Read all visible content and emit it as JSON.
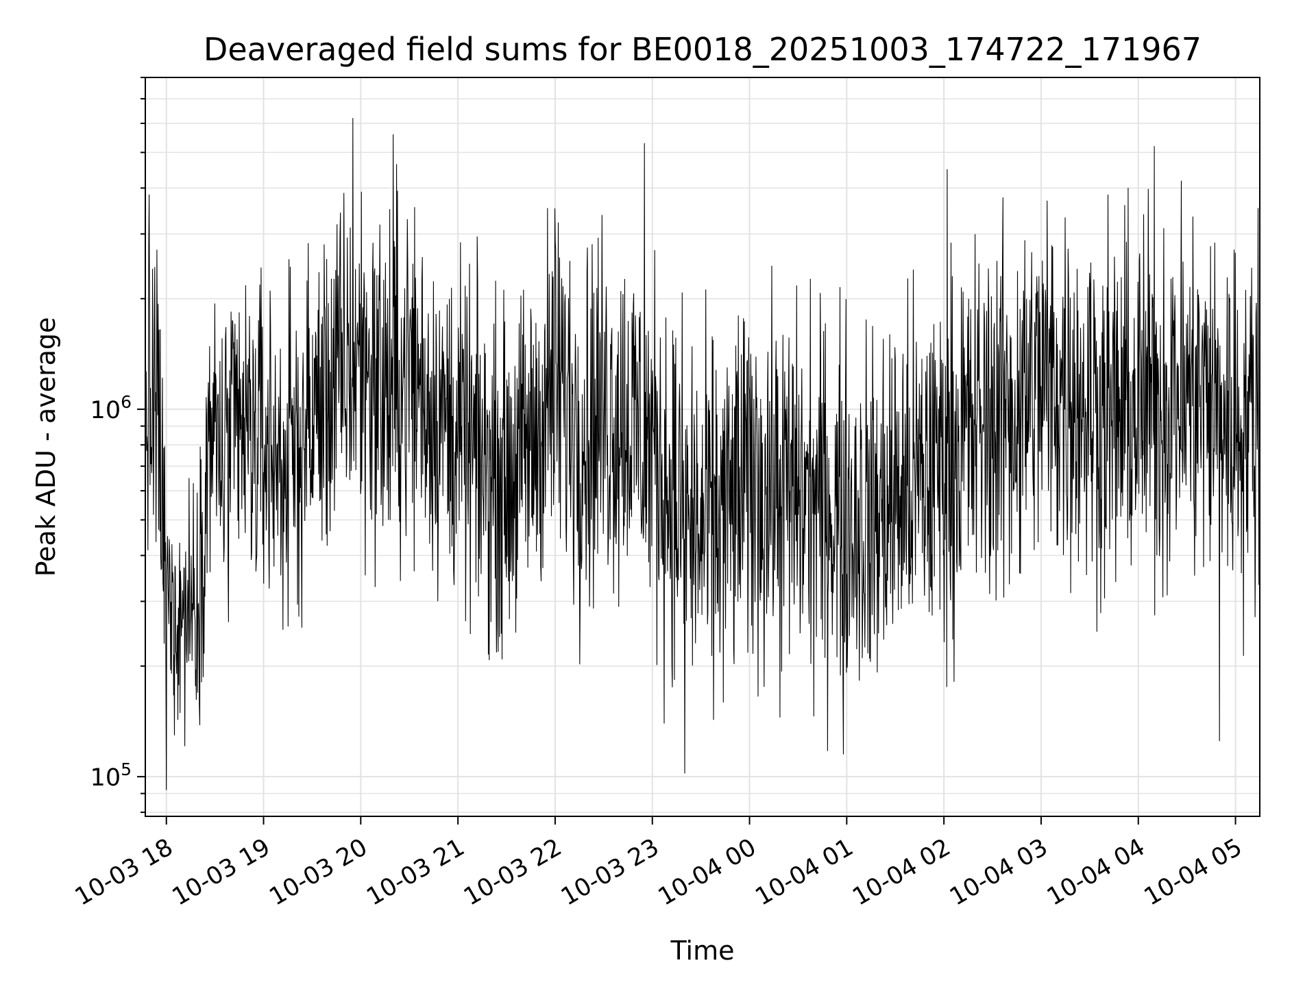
{
  "chart_data": {
    "type": "line",
    "title": "Deaveraged field sums for BE0018_20251003_174722_171967",
    "xlabel": "Time",
    "ylabel": "Peak ADU - average",
    "yscale": "log",
    "ylim": [
      78000,
      8000000
    ],
    "xlim": [
      "2025-10-03 17:47",
      "2025-10-04 05:15"
    ],
    "grid": true,
    "line_color": "#000000",
    "x_ticks": [
      {
        "t": "2025-10-03 18:00",
        "label": "10-03 18"
      },
      {
        "t": "2025-10-03 19:00",
        "label": "10-03 19"
      },
      {
        "t": "2025-10-03 20:00",
        "label": "10-03 20"
      },
      {
        "t": "2025-10-03 21:00",
        "label": "10-03 21"
      },
      {
        "t": "2025-10-03 22:00",
        "label": "10-03 22"
      },
      {
        "t": "2025-10-03 23:00",
        "label": "10-03 23"
      },
      {
        "t": "2025-10-04 00:00",
        "label": "10-04 00"
      },
      {
        "t": "2025-10-04 01:00",
        "label": "10-04 01"
      },
      {
        "t": "2025-10-04 02:00",
        "label": "10-04 02"
      },
      {
        "t": "2025-10-04 03:00",
        "label": "10-04 03"
      },
      {
        "t": "2025-10-04 04:00",
        "label": "10-04 04"
      },
      {
        "t": "2025-10-04 05:00",
        "label": "10-04 05"
      }
    ],
    "y_ticks": [
      {
        "value": 100000,
        "base": "10",
        "exp": "5"
      },
      {
        "value": 1000000,
        "base": "10",
        "exp": "6"
      }
    ],
    "series": [
      {
        "x": [
          "2025-10-03 17:47",
          "2025-10-03 17:55",
          "2025-10-03 18:00",
          "2025-10-03 18:10",
          "2025-10-03 18:20",
          "2025-10-03 18:27",
          "2025-10-03 18:35",
          "2025-10-03 18:45",
          "2025-10-03 19:00",
          "2025-10-03 19:15",
          "2025-10-03 19:30",
          "2025-10-03 19:45",
          "2025-10-03 20:00",
          "2025-10-03 20:15",
          "2025-10-03 20:30",
          "2025-10-03 20:45",
          "2025-10-03 21:00",
          "2025-10-03 21:15",
          "2025-10-03 21:30",
          "2025-10-03 21:45",
          "2025-10-03 22:00",
          "2025-10-03 22:15",
          "2025-10-03 22:30",
          "2025-10-03 22:45",
          "2025-10-03 23:00",
          "2025-10-03 23:15",
          "2025-10-03 23:30",
          "2025-10-03 23:45",
          "2025-10-04 00:00",
          "2025-10-04 00:15",
          "2025-10-04 00:30",
          "2025-10-04 00:45",
          "2025-10-04 01:00",
          "2025-10-04 01:15",
          "2025-10-04 01:30",
          "2025-10-04 01:45",
          "2025-10-04 02:00",
          "2025-10-04 02:15",
          "2025-10-04 02:30",
          "2025-10-04 02:45",
          "2025-10-04 03:00",
          "2025-10-04 03:15",
          "2025-10-04 03:30",
          "2025-10-04 03:45",
          "2025-10-04 04:00",
          "2025-10-04 04:15",
          "2025-10-04 04:30",
          "2025-10-04 04:45",
          "2025-10-04 05:00",
          "2025-10-04 05:15"
        ],
        "y": [
          1100000,
          900000,
          300000,
          280000,
          320000,
          900000,
          700000,
          850000,
          800000,
          700000,
          950000,
          1200000,
          1400000,
          1100000,
          1300000,
          1000000,
          850000,
          700000,
          650000,
          800000,
          1200000,
          900000,
          1000000,
          950000,
          800000,
          550000,
          450000,
          520000,
          650000,
          600000,
          580000,
          550000,
          520000,
          500000,
          580000,
          620000,
          750000,
          850000,
          950000,
          1000000,
          1200000,
          1150000,
          1050000,
          950000,
          1000000,
          1050000,
          1100000,
          1050000,
          900000,
          1000000
        ],
        "spread": [
          0.45,
          0.45,
          0.3,
          0.3,
          0.3,
          0.35,
          0.4,
          0.4,
          0.4,
          0.4,
          0.4,
          0.4,
          0.45,
          0.45,
          0.45,
          0.4,
          0.4,
          0.4,
          0.4,
          0.4,
          0.45,
          0.45,
          0.45,
          0.45,
          0.45,
          0.45,
          0.45,
          0.45,
          0.45,
          0.45,
          0.45,
          0.45,
          0.45,
          0.45,
          0.45,
          0.45,
          0.45,
          0.45,
          0.45,
          0.45,
          0.45,
          0.45,
          0.45,
          0.45,
          0.45,
          0.45,
          0.45,
          0.45,
          0.45,
          0.45
        ]
      }
    ],
    "peaks": [
      {
        "t": "2025-10-03 18:00",
        "y": 92000
      },
      {
        "t": "2025-10-03 19:55",
        "y": 6200000
      },
      {
        "t": "2025-10-03 20:20",
        "y": 5600000
      },
      {
        "t": "2025-10-03 22:55",
        "y": 5300000
      },
      {
        "t": "2025-10-03 23:20",
        "y": 102000
      },
      {
        "t": "2025-10-04 00:58",
        "y": 115000
      },
      {
        "t": "2025-10-04 02:02",
        "y": 4500000
      },
      {
        "t": "2025-10-04 04:10",
        "y": 5200000
      },
      {
        "t": "2025-10-04 04:50",
        "y": 125000
      }
    ]
  }
}
